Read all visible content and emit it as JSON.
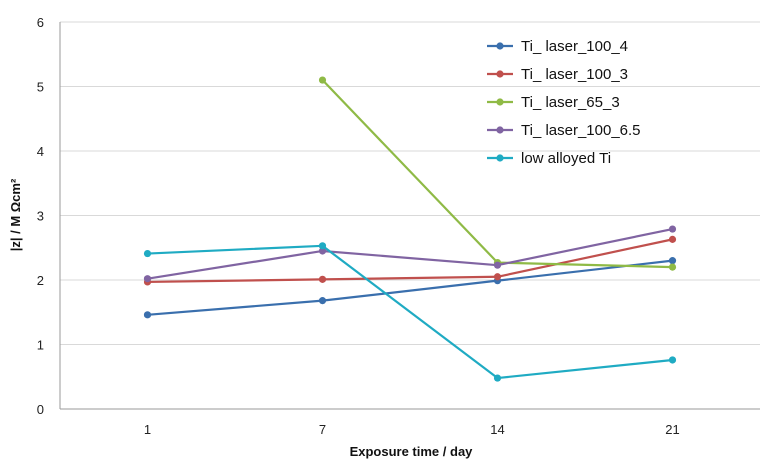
{
  "chart_data": {
    "type": "line",
    "categories": [
      "1",
      "7",
      "14",
      "21"
    ],
    "xlabel": "Exposure time  /  day",
    "ylabel": "|z| / M Ωcm²",
    "ylim": [
      0,
      6
    ],
    "yticks": [
      "0",
      "1",
      "2",
      "3",
      "4",
      "5",
      "6"
    ],
    "grid": true,
    "legend_position": "top-right",
    "series": [
      {
        "name": "Ti_ laser_100_4",
        "color": "#3a6fad",
        "values": [
          1.46,
          1.68,
          1.99,
          2.3
        ]
      },
      {
        "name": "Ti_ laser_100_3",
        "color": "#c0504d",
        "values": [
          1.97,
          2.01,
          2.05,
          2.63
        ]
      },
      {
        "name": "Ti_ laser_65_3",
        "color": "#8fba46",
        "values": [
          null,
          5.1,
          2.27,
          2.2
        ]
      },
      {
        "name": "Ti_ laser_100_6.5",
        "color": "#8064a2",
        "values": [
          2.02,
          2.45,
          2.23,
          2.79
        ]
      },
      {
        "name": "low alloyed Ti",
        "color": "#1fabc3",
        "values": [
          2.41,
          2.53,
          0.48,
          0.76
        ]
      }
    ]
  }
}
